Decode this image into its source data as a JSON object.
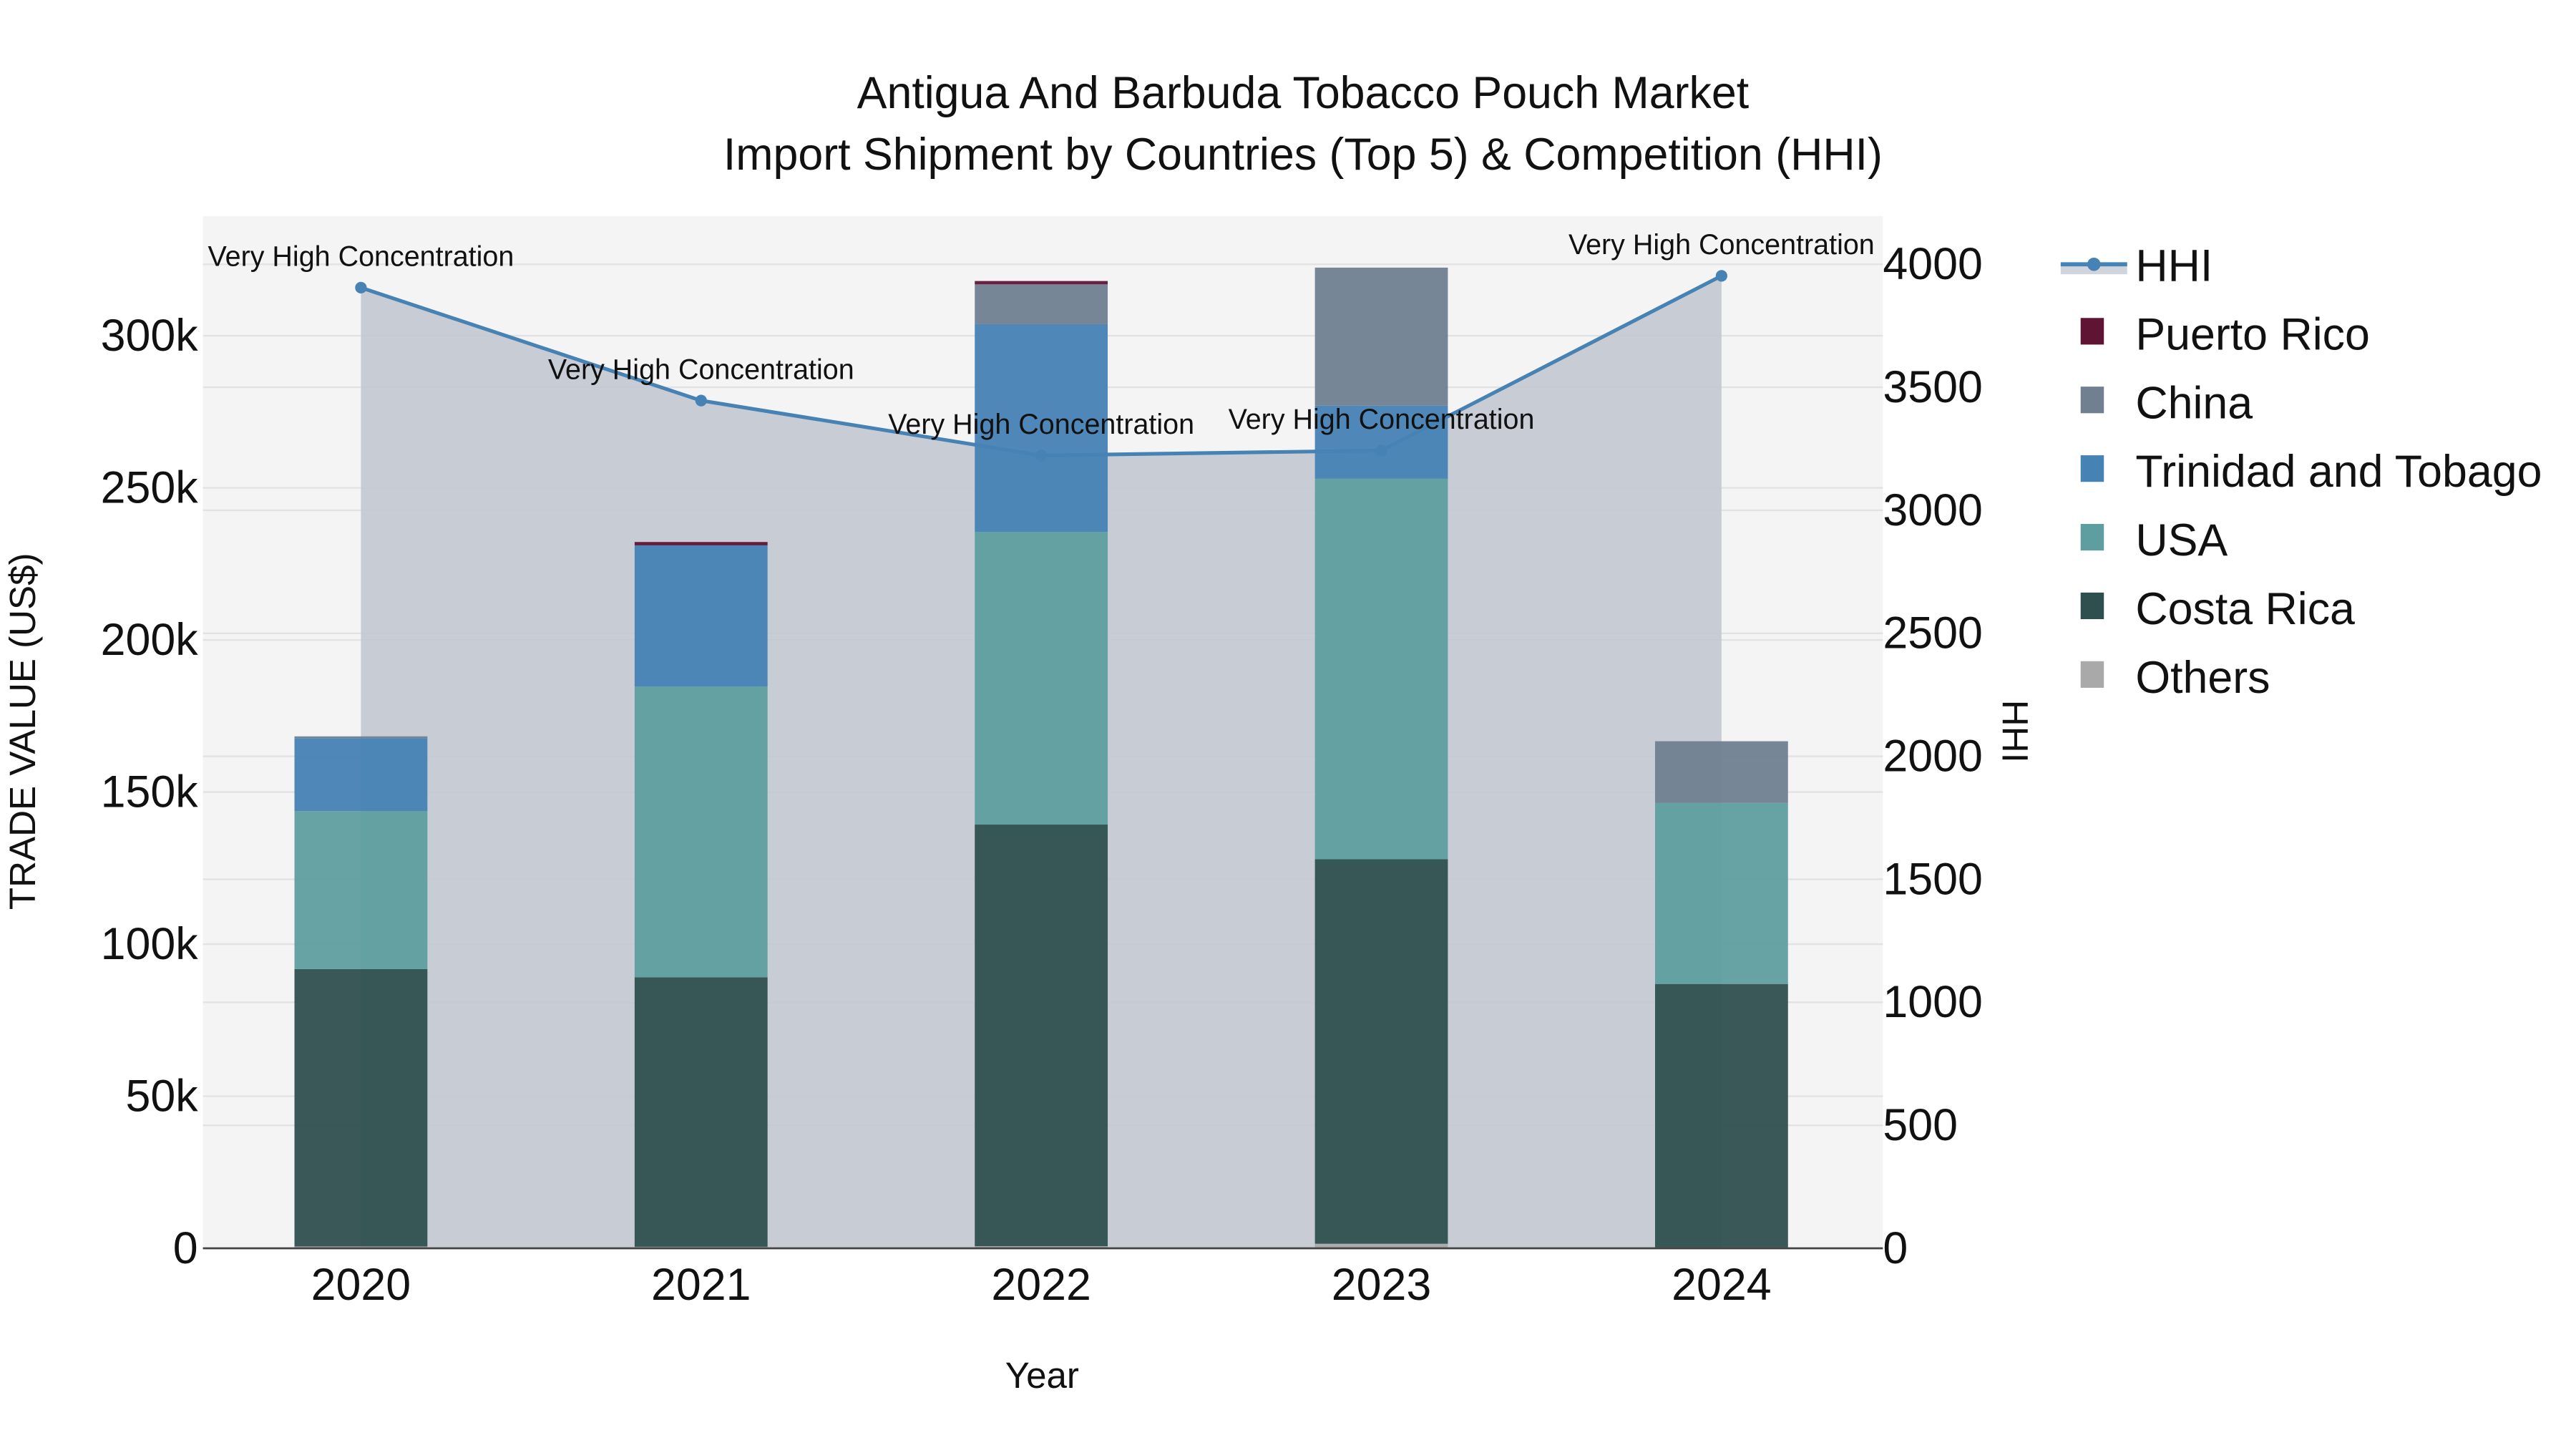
{
  "chart_data": {
    "type": "bar",
    "subtype": "stacked bar + line (secondary axis)",
    "title": "Antigua And Barbuda Tobacco Pouch Market",
    "subtitle": "Import Shipment by Countries (Top 5) & Competition (HHI)",
    "xlabel": "Year",
    "ylabel": "TRADE VALUE (US$)",
    "y2label": "HHI",
    "categories": [
      "2020",
      "2021",
      "2022",
      "2023",
      "2024"
    ],
    "ylim": [
      0,
      340000
    ],
    "y_ticks": [
      0,
      50000,
      100000,
      150000,
      200000,
      250000,
      300000
    ],
    "y_tick_labels": [
      "0",
      "50k",
      "100k",
      "150k",
      "200k",
      "250k",
      "300k"
    ],
    "y2lim": [
      0,
      4200
    ],
    "y2_ticks": [
      0,
      500,
      1000,
      1500,
      2000,
      2500,
      3000,
      3500,
      4000
    ],
    "y2_tick_labels": [
      "0",
      "500",
      "1000",
      "1500",
      "2000",
      "2500",
      "3000",
      "3500",
      "4000"
    ],
    "grid": true,
    "legend_position": "right",
    "series": [
      {
        "name": "Others",
        "color": "#a9a9a9",
        "values": [
          600,
          500,
          700,
          1500,
          300
        ]
      },
      {
        "name": "Costa Rica",
        "color": "#2f4f4f",
        "values": [
          91200,
          88600,
          138600,
          126400,
          86600
        ]
      },
      {
        "name": "USA",
        "color": "#5f9ea0",
        "values": [
          51900,
          95600,
          96200,
          125100,
          59500
        ]
      },
      {
        "name": "Trinidad and Tobago",
        "color": "#4682b4",
        "values": [
          24000,
          46400,
          68300,
          24000,
          0
        ]
      },
      {
        "name": "China",
        "color": "#708090",
        "values": [
          600,
          0,
          13100,
          45400,
          20300
        ]
      },
      {
        "name": "Puerto Rico",
        "color": "#5f1434",
        "values": [
          0,
          1100,
          1100,
          0,
          0
        ]
      }
    ],
    "line_series": {
      "name": "HHI",
      "color": "#4682b4",
      "fill_color": "#c8ccd4",
      "axis": "y2",
      "values": [
        3905,
        3446,
        3223,
        3243,
        3953
      ],
      "annotations": [
        "Very High Concentration",
        "Very High Concentration",
        "Very High Concentration",
        "Very High Concentration",
        "Very High Concentration"
      ]
    },
    "legend": [
      "HHI",
      "Puerto Rico",
      "China",
      "Trinidad and Tobago",
      "USA",
      "Costa Rica",
      "Others"
    ]
  }
}
